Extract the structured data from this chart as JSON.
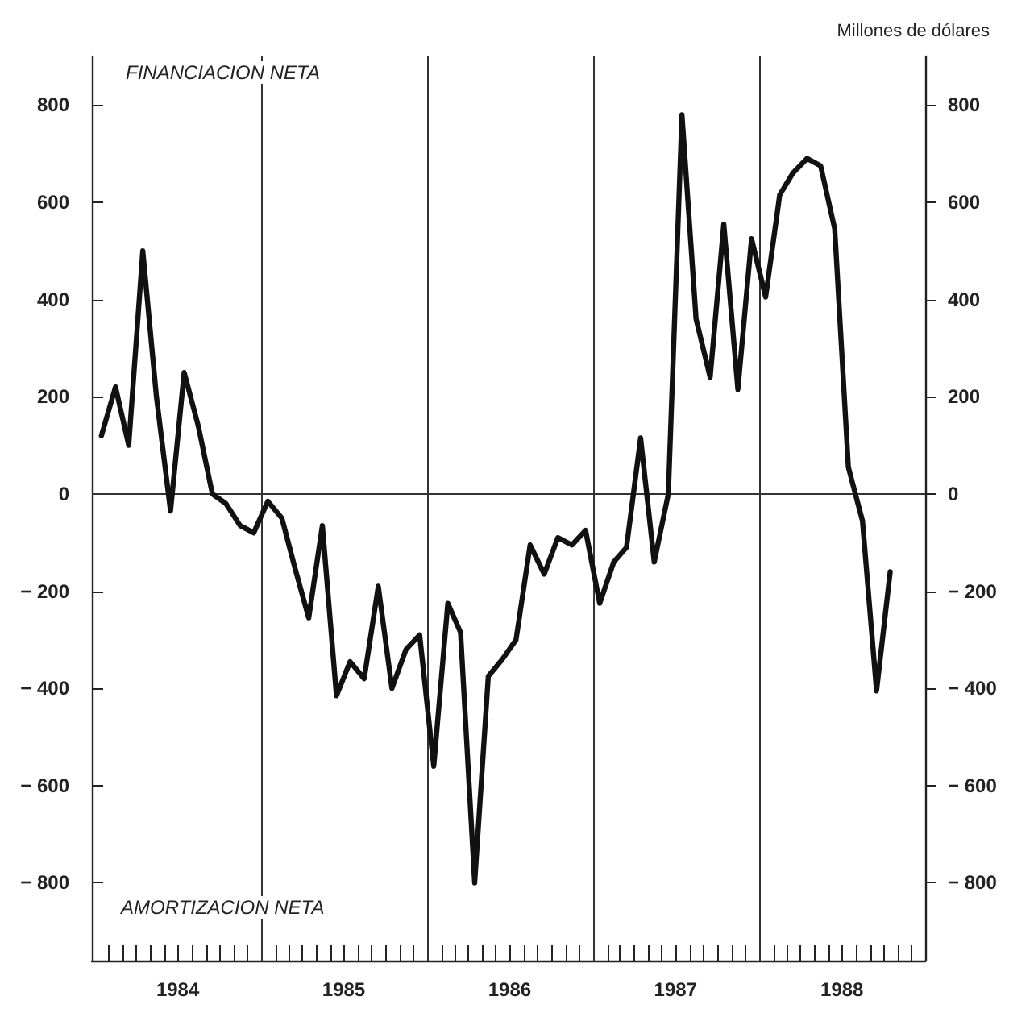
{
  "chart_data": {
    "type": "line",
    "y2label": "Millones de dólares",
    "annotations": [
      "FINANCIACION NETA",
      "AMORTIZACION NETA"
    ],
    "x": [
      "1984-01-15",
      "1984-02-15",
      "1984-03-15",
      "1984-04-15",
      "1984-05-15",
      "1984-06-15",
      "1984-07-15",
      "1984-08-15",
      "1984-09-15",
      "1984-10-15",
      "1984-11-15",
      "1984-12-15",
      "1985-01-15",
      "1985-02-15",
      "1985-03-15",
      "1985-04-15",
      "1985-05-15",
      "1985-06-15",
      "1985-07-15",
      "1985-08-15",
      "1985-09-15",
      "1985-10-15",
      "1985-11-15",
      "1985-12-15",
      "1986-01-15",
      "1986-02-15",
      "1986-03-15",
      "1986-04-15",
      "1986-05-15",
      "1986-06-15",
      "1986-07-15",
      "1986-08-15",
      "1986-09-15",
      "1986-10-15",
      "1986-11-15",
      "1986-12-15",
      "1987-01-15",
      "1987-02-15",
      "1987-03-15",
      "1987-04-15",
      "1987-05-15",
      "1987-06-15",
      "1987-07-15",
      "1987-08-15",
      "1987-09-15",
      "1987-10-15",
      "1987-11-15",
      "1987-12-15",
      "1988-01-15",
      "1988-02-15",
      "1988-03-15",
      "1988-04-15",
      "1988-05-15",
      "1988-06-15",
      "1988-07-15",
      "1988-08-15",
      "1988-09-15",
      "1988-10-15"
    ],
    "series": [
      {
        "color": "#111111",
        "values": [
          120,
          220,
          100,
          500,
          200,
          -35,
          250,
          140,
          0,
          -20,
          -65,
          -80,
          -15,
          -50,
          -150,
          -255,
          -65,
          -415,
          -345,
          -380,
          -190,
          -400,
          -320,
          -290,
          -560,
          -225,
          -285,
          -800,
          -375,
          -340,
          -300,
          -105,
          -165,
          -90,
          -105,
          -75,
          -225,
          -140,
          -110,
          115,
          -140,
          0,
          780,
          360,
          240,
          555,
          215,
          525,
          405,
          615,
          660,
          690,
          675,
          545,
          55,
          -55,
          -405,
          -160
        ]
      }
    ],
    "xlim": [
      "1983-12-25",
      "1988-12-31"
    ],
    "xticks": [
      {
        "value": "1984-02-01",
        "label": null
      },
      {
        "value": "1984-03-01",
        "label": null
      },
      {
        "value": "1984-04-01",
        "label": null
      },
      {
        "value": "1984-05-01",
        "label": null
      },
      {
        "value": "1984-06-01",
        "label": null
      },
      {
        "value": "1984-07-01",
        "label": "1984"
      },
      {
        "value": "1984-08-01",
        "label": null
      },
      {
        "value": "1984-09-01",
        "label": null
      },
      {
        "value": "1984-10-01",
        "label": null
      },
      {
        "value": "1984-11-01",
        "label": null
      },
      {
        "value": "1984-12-01",
        "label": null
      },
      {
        "value": "1985-01-01",
        "label": null
      },
      {
        "value": "1985-02-01",
        "label": null
      },
      {
        "value": "1985-03-01",
        "label": null
      },
      {
        "value": "1985-04-01",
        "label": null
      },
      {
        "value": "1985-05-01",
        "label": null
      },
      {
        "value": "1985-06-01",
        "label": null
      },
      {
        "value": "1985-07-01",
        "label": "1985"
      },
      {
        "value": "1985-08-01",
        "label": null
      },
      {
        "value": "1985-09-01",
        "label": null
      },
      {
        "value": "1985-10-01",
        "label": null
      },
      {
        "value": "1985-11-01",
        "label": null
      },
      {
        "value": "1985-12-01",
        "label": null
      },
      {
        "value": "1986-01-01",
        "label": null
      },
      {
        "value": "1986-02-01",
        "label": null
      },
      {
        "value": "1986-03-01",
        "label": null
      },
      {
        "value": "1986-04-01",
        "label": null
      },
      {
        "value": "1986-05-01",
        "label": null
      },
      {
        "value": "1986-06-01",
        "label": null
      },
      {
        "value": "1986-07-01",
        "label": "1986"
      },
      {
        "value": "1986-08-01",
        "label": null
      },
      {
        "value": "1986-09-01",
        "label": null
      },
      {
        "value": "1986-10-01",
        "label": null
      },
      {
        "value": "1986-11-01",
        "label": null
      },
      {
        "value": "1986-12-01",
        "label": null
      },
      {
        "value": "1987-01-01",
        "label": null
      },
      {
        "value": "1987-02-01",
        "label": null
      },
      {
        "value": "1987-03-01",
        "label": null
      },
      {
        "value": "1987-04-01",
        "label": null
      },
      {
        "value": "1987-05-01",
        "label": null
      },
      {
        "value": "1987-06-01",
        "label": null
      },
      {
        "value": "1987-07-01",
        "label": "1987"
      },
      {
        "value": "1987-08-01",
        "label": null
      },
      {
        "value": "1987-09-01",
        "label": null
      },
      {
        "value": "1987-10-01",
        "label": null
      },
      {
        "value": "1987-11-01",
        "label": null
      },
      {
        "value": "1987-12-01",
        "label": null
      },
      {
        "value": "1988-01-01",
        "label": null
      },
      {
        "value": "1988-02-01",
        "label": null
      },
      {
        "value": "1988-03-01",
        "label": null
      },
      {
        "value": "1988-04-01",
        "label": null
      },
      {
        "value": "1988-05-01",
        "label": null
      },
      {
        "value": "1988-06-01",
        "label": null
      },
      {
        "value": "1988-07-01",
        "label": "1988"
      },
      {
        "value": "1988-08-01",
        "label": null
      },
      {
        "value": "1988-09-01",
        "label": null
      },
      {
        "value": "1988-10-01",
        "label": null
      },
      {
        "value": "1988-11-01",
        "label": null
      },
      {
        "value": "1988-12-01",
        "label": null
      }
    ],
    "ylim": [
      -960,
      900
    ],
    "yticks": [
      -800,
      -600,
      -400,
      -200,
      0,
      200,
      400,
      600,
      800
    ],
    "y2lim": [
      -960,
      900
    ],
    "y2ticks": [
      -800,
      -600,
      -400,
      -200,
      0,
      200,
      400,
      600,
      800
    ],
    "ref_lines": [
      {
        "axis": "y",
        "value": 0
      },
      {
        "axis": "x",
        "value": "1985-01-01"
      },
      {
        "axis": "x",
        "value": "1986-01-01"
      },
      {
        "axis": "x",
        "value": "1987-01-01"
      },
      {
        "axis": "x",
        "value": "1988-01-01"
      }
    ],
    "grid": false,
    "marker": "none",
    "line_style": "solid"
  }
}
